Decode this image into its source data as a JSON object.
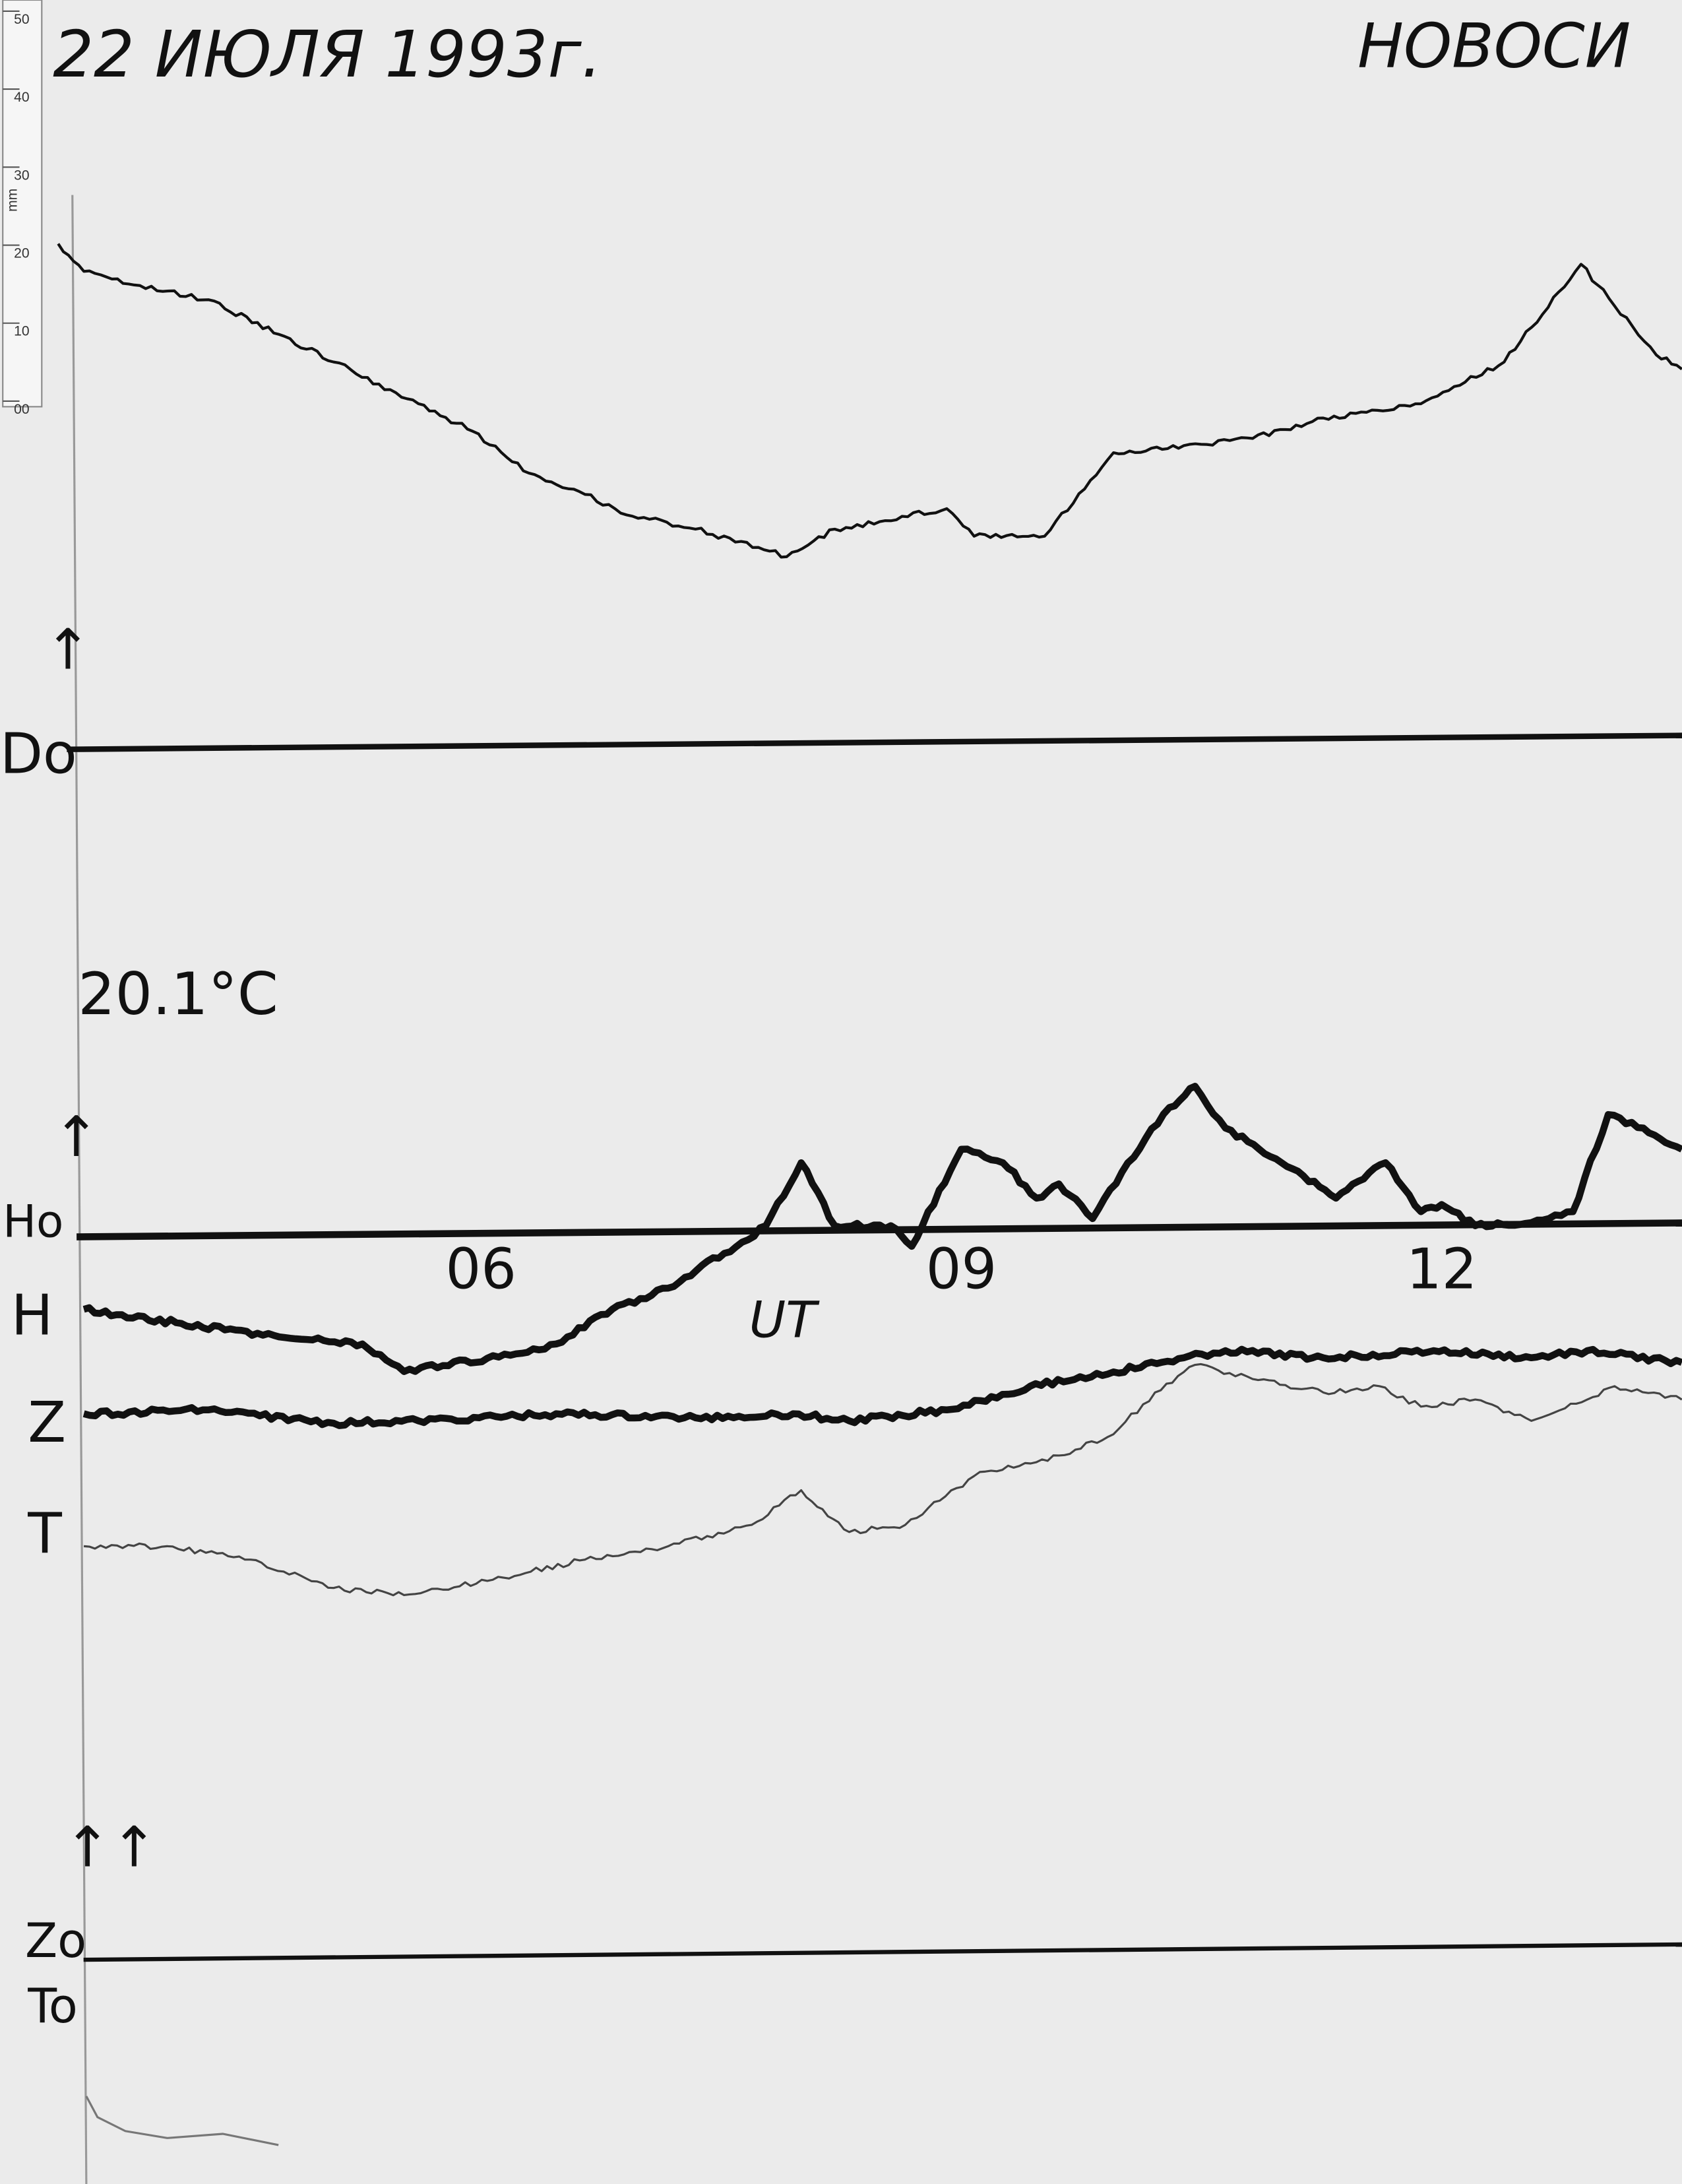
{
  "header": {
    "date": "22 ИЮЛЯ 1993г.",
    "station": "НОВОСИ"
  },
  "temperature": "20.1°C",
  "ruler": {
    "unit": "mm",
    "labels": [
      "50",
      "40",
      "30",
      "20",
      "10",
      "00"
    ]
  },
  "labels": {
    "d_arrow": "↑",
    "d_baseline": "Do",
    "h_arrow": "↑",
    "h_baseline": "Ho",
    "h": "H",
    "z": "Z",
    "t": "T",
    "zt_arrow": "↑↑",
    "z_baseline": "Zo",
    "t_baseline": "To"
  },
  "colors": {
    "paper": "#ebebeb",
    "ink": "#111111",
    "trace_thin": "#444444"
  },
  "chart_data": {
    "type": "line",
    "title": "",
    "xlabel": "UT",
    "ylabel": "",
    "x_unit": "UT hours",
    "y_unit": "mm",
    "xticks": [
      6,
      9,
      12
    ],
    "xtick_labels": [
      "06",
      "09",
      "12"
    ],
    "xlim": [
      3.3,
      13.5
    ],
    "grid": false,
    "series": [
      {
        "name": "D",
        "baseline": "Do",
        "x": [
          3.32,
          3.48,
          3.83,
          4.26,
          4.7,
          5.04,
          5.57,
          5.91,
          6.26,
          6.61,
          6.87,
          7.3,
          7.87,
          8.17,
          8.87,
          9.04,
          9.48,
          9.91,
          10.35,
          10.78,
          11.22,
          11.83,
          12.35,
          12.83,
          13.04,
          13.3,
          13.46
        ],
        "y": [
          63.6,
          60.1,
          58.3,
          56.5,
          52.1,
          48.6,
          43.3,
          39.8,
          34.5,
          31.8,
          29.2,
          27.4,
          23.9,
          27.4,
          30.0,
          26.5,
          26.5,
          37.1,
          38.0,
          38.9,
          41.5,
          43.3,
          48.6,
          61.0,
          55.7,
          49.5,
          47.7
        ]
      },
      {
        "name": "H",
        "baseline": "Ho",
        "x": [
          3.48,
          4.09,
          4.7,
          5.22,
          5.48,
          6.0,
          6.43,
          6.78,
          7.13,
          7.48,
          7.74,
          7.96,
          8.17,
          8.52,
          8.65,
          8.96,
          9.22,
          9.43,
          9.57,
          9.78,
          10.0,
          10.26,
          10.42,
          10.61,
          10.96,
          11.3,
          11.61,
          11.83,
          11.96,
          12.17,
          12.52,
          12.78,
          13.0,
          13.22,
          13.46
        ],
        "y": [
          -9.9,
          -11.7,
          -13.4,
          -14.3,
          -17.8,
          -16.1,
          -14.3,
          -9.9,
          -7.2,
          -2.8,
          0.7,
          8.7,
          0.7,
          0.7,
          -1.9,
          10.4,
          8.7,
          4.2,
          6.0,
          1.6,
          8.7,
          15.7,
          18.4,
          13.1,
          8.7,
          4.2,
          8.7,
          2.5,
          3.4,
          0.7,
          1.1,
          2.5,
          14.8,
          13.1,
          10.4
        ]
      },
      {
        "name": "Z",
        "baseline": "Zo",
        "x": [
          3.48,
          4.26,
          5.04,
          5.57,
          6.43,
          7.3,
          7.91,
          8.26,
          8.87,
          9.39,
          9.91,
          10.35,
          10.61,
          11.22,
          11.91,
          12.52,
          12.87,
          13.46
        ],
        "y": [
          68.9,
          69.4,
          67.7,
          68.0,
          68.9,
          68.4,
          68.9,
          68.0,
          69.4,
          72.4,
          74.2,
          76.0,
          76.9,
          76.0,
          76.9,
          76.0,
          76.9,
          75.4
        ]
      },
      {
        "name": "T",
        "baseline": "To",
        "x": [
          3.48,
          4.0,
          4.52,
          5.04,
          5.48,
          6.0,
          6.61,
          7.13,
          7.65,
          7.96,
          8.26,
          8.61,
          9.04,
          9.57,
          9.91,
          10.17,
          10.42,
          10.78,
          11.22,
          11.57,
          11.83,
          12.17,
          12.52,
          12.87,
          13.04,
          13.46
        ],
        "y": [
          52.1,
          52.1,
          50.4,
          46.8,
          45.9,
          47.7,
          50.4,
          52.1,
          54.8,
          59.2,
          53.9,
          54.8,
          61.0,
          63.6,
          66.3,
          71.6,
          75.1,
          73.3,
          71.6,
          72.4,
          69.8,
          70.7,
          68.0,
          70.7,
          72.4,
          70.7
        ]
      }
    ]
  }
}
